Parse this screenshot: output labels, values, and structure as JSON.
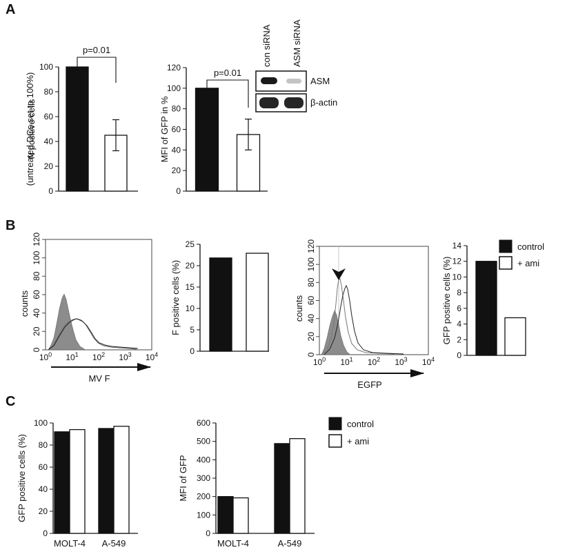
{
  "panels": {
    "a": "A",
    "b": "B",
    "c": "C"
  },
  "colors": {
    "control": "#111111",
    "ami": "#ffffff",
    "stroke": "#111111",
    "hist_fill": "#8c8c8c"
  },
  "legend": {
    "control": "control",
    "ami": "+ ami"
  },
  "blot": {
    "lane1": "con siRNA",
    "lane2": "ASM siRNA",
    "row1": "ASM",
    "row2": "β-actin"
  },
  "flow": {
    "counts": "counts",
    "y_ticks": [
      "0",
      "20",
      "40",
      "60",
      "80",
      "100",
      "120"
    ],
    "x_ticks": [
      {
        "base": "10",
        "exp": "0"
      },
      {
        "base": "10",
        "exp": "1"
      },
      {
        "base": "10",
        "exp": "2"
      },
      {
        "base": "10",
        "exp": "3"
      },
      {
        "base": "10",
        "exp": "4"
      }
    ],
    "mvf_label": "MV F",
    "egfp_label": "EGFP"
  },
  "chart_data": [
    {
      "id": "A1",
      "type": "bar",
      "categories": [
        "",
        ""
      ],
      "series": [
        {
          "values": [
            100,
            45
          ]
        }
      ],
      "errors": [
        0,
        12.5
      ],
      "fills": [
        "control",
        "ami"
      ],
      "ylim": [
        0,
        100
      ],
      "yticks": [
        0,
        20,
        40,
        60,
        80,
        100
      ],
      "ylabel": "N positive cells",
      "ylabel2": "(untreated DCs set to 100%)",
      "annotation": "p=0.01"
    },
    {
      "id": "A2",
      "type": "bar",
      "categories": [
        "",
        ""
      ],
      "series": [
        {
          "values": [
            100,
            55
          ]
        }
      ],
      "errors": [
        0,
        15
      ],
      "fills": [
        "control",
        "ami"
      ],
      "ylim": [
        0,
        120
      ],
      "yticks": [
        0,
        20,
        40,
        60,
        80,
        100,
        120
      ],
      "ylabel": "MFI of GFP in %",
      "annotation": "p=0.01"
    },
    {
      "id": "B1",
      "type": "bar",
      "categories": [
        "",
        ""
      ],
      "series": [
        {
          "values": [
            21.8,
            22.9
          ]
        }
      ],
      "fills": [
        "control",
        "ami"
      ],
      "ylim": [
        0,
        25
      ],
      "yticks": [
        0,
        5,
        10,
        15,
        20,
        25
      ],
      "ylabel": "F positive cells (%)"
    },
    {
      "id": "B2",
      "type": "bar",
      "categories": [
        "",
        ""
      ],
      "series": [
        {
          "values": [
            12,
            4.8
          ]
        }
      ],
      "fills": [
        "control",
        "ami"
      ],
      "ylim": [
        0,
        14
      ],
      "yticks": [
        0,
        2,
        4,
        6,
        8,
        10,
        12,
        14
      ],
      "ylabel": "GFP  positive cells (%)"
    },
    {
      "id": "C1",
      "type": "bar",
      "categories": [
        "MOLT-4",
        "A-549"
      ],
      "series": [
        {
          "name": "control",
          "values": [
            92,
            95
          ]
        },
        {
          "name": "+ ami",
          "values": [
            94,
            97
          ]
        }
      ],
      "ylim": [
        0,
        100
      ],
      "yticks": [
        0,
        20,
        40,
        60,
        80,
        100
      ],
      "ylabel": "GFP positive cells (%)"
    },
    {
      "id": "C2",
      "type": "bar",
      "categories": [
        "MOLT-4",
        "A-549"
      ],
      "series": [
        {
          "name": "control",
          "values": [
            200,
            488
          ]
        },
        {
          "name": "+ ami",
          "values": [
            193,
            515
          ]
        }
      ],
      "ylim": [
        0,
        600
      ],
      "yticks": [
        0,
        100,
        200,
        300,
        400,
        500,
        600
      ],
      "ylabel": "MFI of GFP"
    }
  ]
}
